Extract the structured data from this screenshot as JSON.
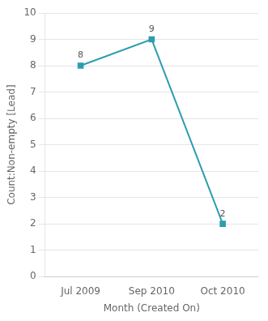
{
  "chart_data": {
    "type": "line",
    "xlabel": "Month (Created On)",
    "ylabel": "Count:Non-empty [Lead]",
    "categories": [
      "Jul 2009",
      "Sep 2010",
      "Oct 2010"
    ],
    "values": [
      8,
      9,
      2
    ],
    "color": "#2E9DB0",
    "marker": "square",
    "ylim": [
      0,
      10
    ],
    "yticks": [
      0,
      1,
      2,
      3,
      4,
      5,
      6,
      7,
      8,
      9,
      10
    ],
    "grid": true,
    "data_labels": true
  }
}
